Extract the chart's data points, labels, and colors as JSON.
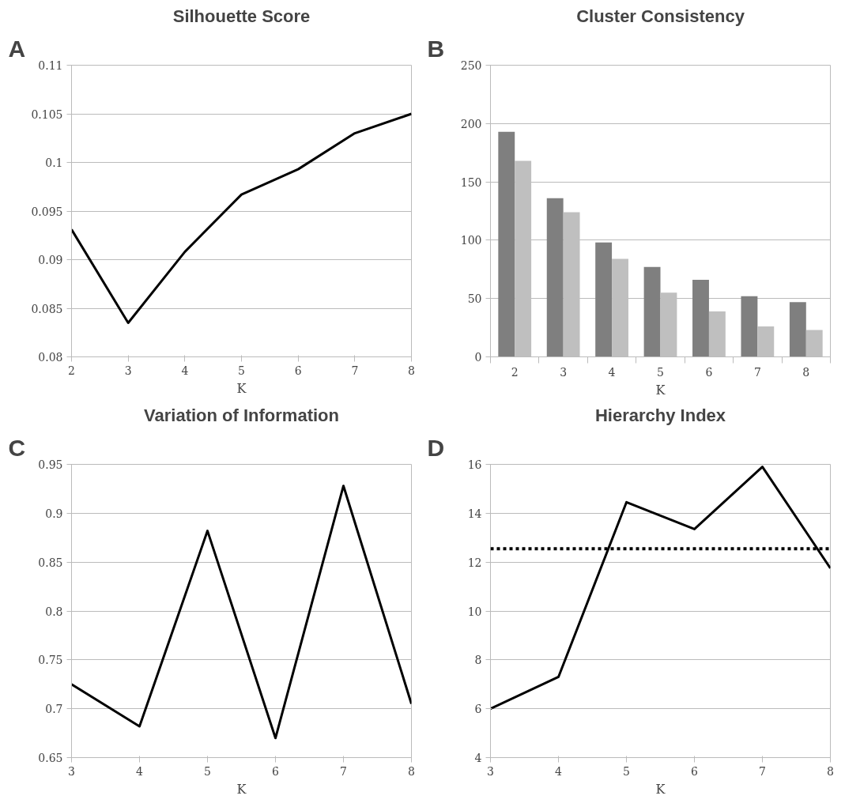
{
  "chart_data": [
    {
      "type": "line",
      "title": "Silhouette Score",
      "xlabel": "K",
      "annotations": [
        "A"
      ],
      "grid": "y",
      "marker": "none",
      "line_style": "solid",
      "x": [
        2,
        3,
        4,
        5,
        6,
        7,
        8
      ],
      "xlim": [
        2,
        8
      ],
      "xticks": [
        2,
        3,
        4,
        5,
        6,
        7,
        8
      ],
      "ylim": [
        0.08,
        0.11
      ],
      "yticks": [
        0.08,
        0.085,
        0.09,
        0.095,
        0.1,
        0.105,
        0.11
      ],
      "series": [
        {
          "color": "#000000",
          "values": [
            0.0931,
            0.0835,
            0.0908,
            0.0967,
            0.0993,
            0.103,
            0.105
          ]
        }
      ]
    },
    {
      "type": "bar",
      "title": "Cluster Consistency",
      "xlabel": "K",
      "annotations": [
        "B"
      ],
      "grid": "y",
      "categories": [
        "2",
        "3",
        "4",
        "5",
        "6",
        "7",
        "8"
      ],
      "ylim": [
        0,
        250
      ],
      "yticks": [
        0,
        50,
        100,
        150,
        200,
        250
      ],
      "series": [
        {
          "color": "#7f7f7f",
          "values": [
            193,
            136,
            98,
            77,
            66,
            52,
            47
          ]
        },
        {
          "color": "#bfbfbf",
          "values": [
            168,
            124,
            84,
            55,
            39,
            26,
            23
          ]
        }
      ]
    },
    {
      "type": "line",
      "title": "Variation of Information",
      "xlabel": "K",
      "annotations": [
        "C"
      ],
      "grid": "y",
      "marker": "none",
      "line_style": "solid",
      "x": [
        3,
        4,
        5,
        6,
        7,
        8
      ],
      "xlim": [
        3,
        8
      ],
      "xticks": [
        3,
        4,
        5,
        6,
        7,
        8
      ],
      "ylim": [
        0.65,
        0.95
      ],
      "yticks": [
        0.65,
        0.7,
        0.75,
        0.8,
        0.85,
        0.9,
        0.95
      ],
      "series": [
        {
          "color": "#000000",
          "values": [
            0.725,
            0.682,
            0.882,
            0.67,
            0.928,
            0.705
          ]
        }
      ]
    },
    {
      "type": "line",
      "title": "Hierarchy Index",
      "xlabel": "K",
      "annotations": [
        "D"
      ],
      "grid": "y",
      "marker": "none",
      "line_style": "solid",
      "x": [
        3,
        4,
        5,
        6,
        7,
        8
      ],
      "xlim": [
        3,
        8
      ],
      "xticks": [
        3,
        4,
        5,
        6,
        7,
        8
      ],
      "ylim": [
        4,
        16
      ],
      "yticks": [
        4,
        6,
        8,
        10,
        12,
        14,
        16
      ],
      "ref_lines": [
        {
          "axis": "y",
          "value": 12.55,
          "color": "#000000",
          "line_style": "dotted"
        }
      ],
      "series": [
        {
          "color": "#000000",
          "values": [
            6.0,
            7.3,
            14.45,
            13.35,
            15.9,
            11.75
          ]
        }
      ]
    }
  ]
}
